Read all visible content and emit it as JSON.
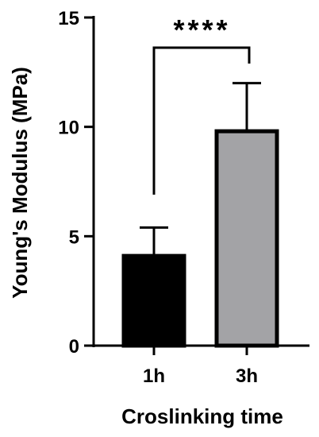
{
  "chart_data": {
    "type": "bar",
    "categories": [
      "1h",
      "3h"
    ],
    "values": [
      4.1,
      9.8
    ],
    "errors": [
      1.3,
      2.2
    ],
    "colors": [
      "#000000",
      "#a3a3a6"
    ],
    "xlabel": "Croslinking time",
    "ylabel": "Young's Modulus (MPa)",
    "ylim": [
      0,
      15
    ],
    "yticks": [
      0,
      5,
      10,
      15
    ],
    "significance": "****"
  }
}
